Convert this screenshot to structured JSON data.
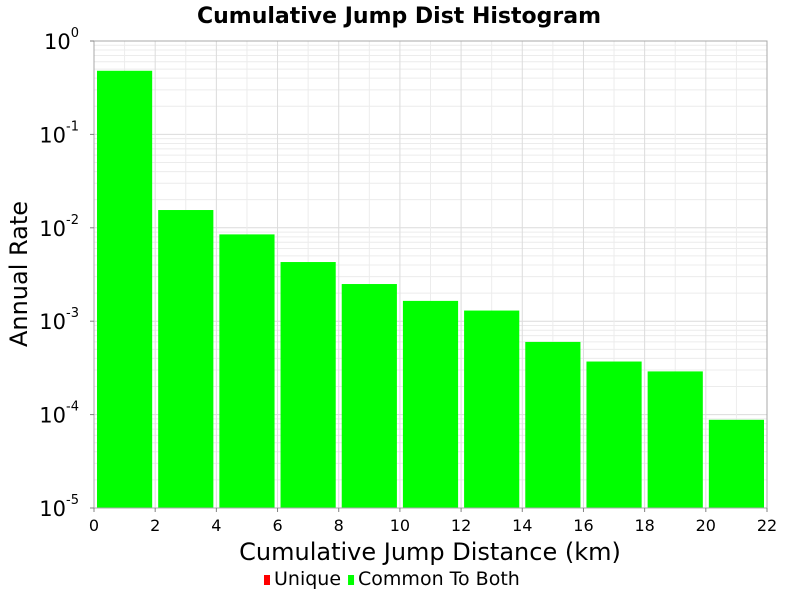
{
  "chart_data": {
    "type": "bar",
    "title": "Cumulative Jump Dist Histogram",
    "xlabel": "Cumulative Jump Distance (km)",
    "ylabel": "Annual Rate",
    "xlim": [
      0,
      22
    ],
    "ylim": [
      1e-05,
      1
    ],
    "yscale": "log",
    "x_ticks": [
      "0",
      "2",
      "4",
      "6",
      "8",
      "10",
      "12",
      "14",
      "16",
      "18",
      "20",
      "22"
    ],
    "y_ticks": [
      {
        "base": "10",
        "exp": "0",
        "value": 1
      },
      {
        "base": "10",
        "exp": "-1",
        "value": 0.1
      },
      {
        "base": "10",
        "exp": "-2",
        "value": 0.01
      },
      {
        "base": "10",
        "exp": "-3",
        "value": 0.001
      },
      {
        "base": "10",
        "exp": "-4",
        "value": 0.0001
      },
      {
        "base": "10",
        "exp": "-5",
        "value": 1e-05
      }
    ],
    "grid": true,
    "bin_edges": [
      0,
      2,
      4,
      6,
      8,
      10,
      12,
      14,
      16,
      18,
      20,
      22
    ],
    "series": [
      {
        "name": "Unique",
        "color": "#ff0000",
        "values": [
          0,
          0,
          0,
          0,
          0,
          0,
          0,
          0,
          0,
          0,
          0
        ]
      },
      {
        "name": "Common To Both",
        "color": "#00ff00",
        "values": [
          0.48,
          0.0155,
          0.0085,
          0.0043,
          0.0025,
          0.00165,
          0.0013,
          0.0006,
          0.00037,
          0.00029,
          8.8e-05
        ]
      }
    ],
    "legend": {
      "position": "bottom",
      "entries": [
        "Unique",
        "Common To Both"
      ]
    }
  }
}
